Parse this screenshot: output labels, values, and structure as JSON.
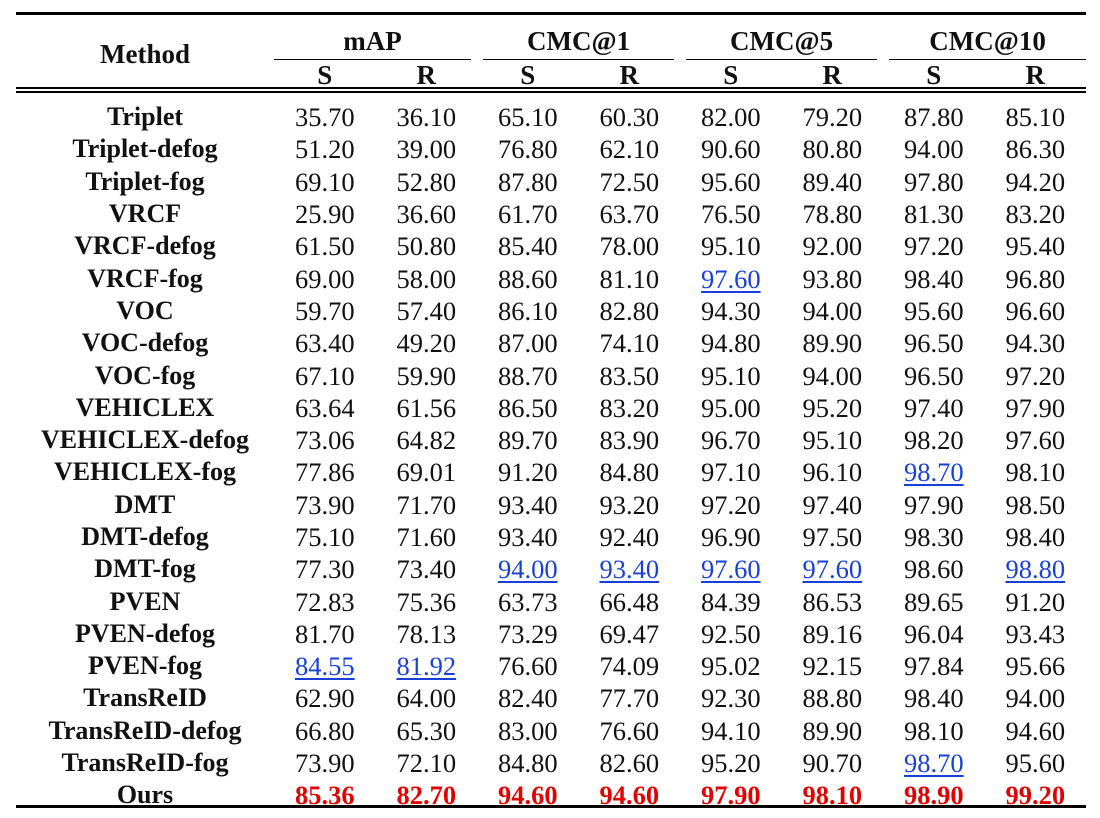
{
  "table": {
    "headers": {
      "method": "Method",
      "groups": [
        "mAP",
        "CMC@1",
        "CMC@5",
        "CMC@10"
      ],
      "sub": [
        "S",
        "R",
        "S",
        "R",
        "S",
        "R",
        "S",
        "R"
      ]
    },
    "rows": [
      {
        "method": "Triplet",
        "values": [
          "35.70",
          "36.10",
          "65.10",
          "60.30",
          "82.00",
          "79.20",
          "87.80",
          "85.10"
        ]
      },
      {
        "method": "Triplet-defog",
        "values": [
          "51.20",
          "39.00",
          "76.80",
          "62.10",
          "90.60",
          "80.80",
          "94.00",
          "86.30"
        ]
      },
      {
        "method": "Triplet-fog",
        "values": [
          "69.10",
          "52.80",
          "87.80",
          "72.50",
          "95.60",
          "89.40",
          "97.80",
          "94.20"
        ]
      },
      {
        "method": "VRCF",
        "values": [
          "25.90",
          "36.60",
          "61.70",
          "63.70",
          "76.50",
          "78.80",
          "81.30",
          "83.20"
        ]
      },
      {
        "method": "VRCF-defog",
        "values": [
          "61.50",
          "50.80",
          "85.40",
          "78.00",
          "95.10",
          "92.00",
          "97.20",
          "95.40"
        ]
      },
      {
        "method": "VRCF-fog",
        "values": [
          "69.00",
          "58.00",
          "88.60",
          "81.10",
          "97.60",
          "93.80",
          "98.40",
          "96.80"
        ]
      },
      {
        "method": "VOC",
        "values": [
          "59.70",
          "57.40",
          "86.10",
          "82.80",
          "94.30",
          "94.00",
          "95.60",
          "96.60"
        ]
      },
      {
        "method": "VOC-defog",
        "values": [
          "63.40",
          "49.20",
          "87.00",
          "74.10",
          "94.80",
          "89.90",
          "96.50",
          "94.30"
        ]
      },
      {
        "method": "VOC-fog",
        "values": [
          "67.10",
          "59.90",
          "88.70",
          "83.50",
          "95.10",
          "94.00",
          "96.50",
          "97.20"
        ]
      },
      {
        "method": "VEHICLEX",
        "values": [
          "63.64",
          "61.56",
          "86.50",
          "83.20",
          "95.00",
          "95.20",
          "97.40",
          "97.90"
        ]
      },
      {
        "method": "VEHICLEX-defog",
        "values": [
          "73.06",
          "64.82",
          "89.70",
          "83.90",
          "96.70",
          "95.10",
          "98.20",
          "97.60"
        ]
      },
      {
        "method": "VEHICLEX-fog",
        "values": [
          "77.86",
          "69.01",
          "91.20",
          "84.80",
          "97.10",
          "96.10",
          "98.70",
          "98.10"
        ]
      },
      {
        "method": "DMT",
        "values": [
          "73.90",
          "71.70",
          "93.40",
          "93.20",
          "97.20",
          "97.40",
          "97.90",
          "98.50"
        ]
      },
      {
        "method": "DMT-defog",
        "values": [
          "75.10",
          "71.60",
          "93.40",
          "92.40",
          "96.90",
          "97.50",
          "98.30",
          "98.40"
        ]
      },
      {
        "method": "DMT-fog",
        "values": [
          "77.30",
          "73.40",
          "94.00",
          "93.40",
          "97.60",
          "97.60",
          "98.60",
          "98.80"
        ]
      },
      {
        "method": "PVEN",
        "values": [
          "72.83",
          "75.36",
          "63.73",
          "66.48",
          "84.39",
          "86.53",
          "89.65",
          "91.20"
        ]
      },
      {
        "method": "PVEN-defog",
        "values": [
          "81.70",
          "78.13",
          "73.29",
          "69.47",
          "92.50",
          "89.16",
          "96.04",
          "93.43"
        ]
      },
      {
        "method": "PVEN-fog",
        "values": [
          "84.55",
          "81.92",
          "76.60",
          "74.09",
          "95.02",
          "92.15",
          "97.84",
          "95.66"
        ]
      },
      {
        "method": "TransReID",
        "values": [
          "62.90",
          "64.00",
          "82.40",
          "77.70",
          "92.30",
          "88.80",
          "98.40",
          "94.00"
        ]
      },
      {
        "method": "TransReID-defog",
        "values": [
          "66.80",
          "65.30",
          "83.00",
          "76.60",
          "94.10",
          "89.90",
          "98.10",
          "94.60"
        ]
      },
      {
        "method": "TransReID-fog",
        "values": [
          "73.90",
          "72.10",
          "84.80",
          "82.60",
          "95.20",
          "90.70",
          "98.70",
          "95.60"
        ]
      },
      {
        "method": "Ours",
        "values": [
          "85.36",
          "82.70",
          "94.60",
          "94.60",
          "97.90",
          "98.10",
          "98.90",
          "99.20"
        ],
        "best": true
      }
    ],
    "second_best": [
      [
        5,
        4
      ],
      [
        11,
        6
      ],
      [
        14,
        2
      ],
      [
        14,
        3
      ],
      [
        14,
        4
      ],
      [
        14,
        5
      ],
      [
        14,
        7
      ],
      [
        17,
        0
      ],
      [
        17,
        1
      ],
      [
        20,
        6
      ]
    ],
    "colors": {
      "best": "#e00000",
      "second_best": "#1a3fd6"
    }
  }
}
